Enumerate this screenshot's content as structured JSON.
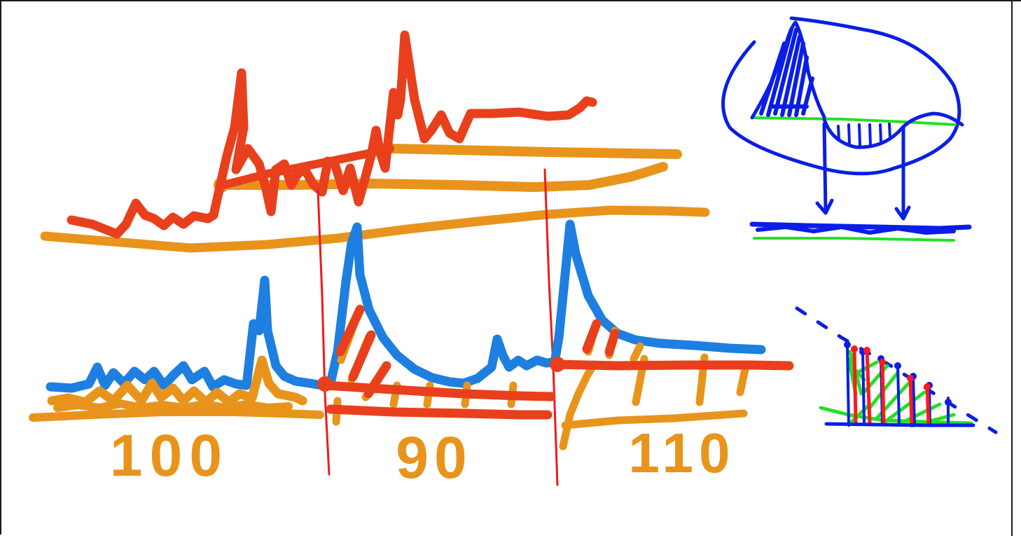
{
  "drawing": {
    "labels": {
      "left_segment": "100",
      "middle_segment": "90",
      "right_segment": "110"
    },
    "colors": {
      "orange": "#e8941c",
      "red_orange": "#e8401c",
      "blue": "#1e7fe0",
      "red_line": "#ee1a1a",
      "dark_blue": "#0a1ee6",
      "green": "#22e022",
      "bright_red": "#ff1a1a"
    }
  }
}
